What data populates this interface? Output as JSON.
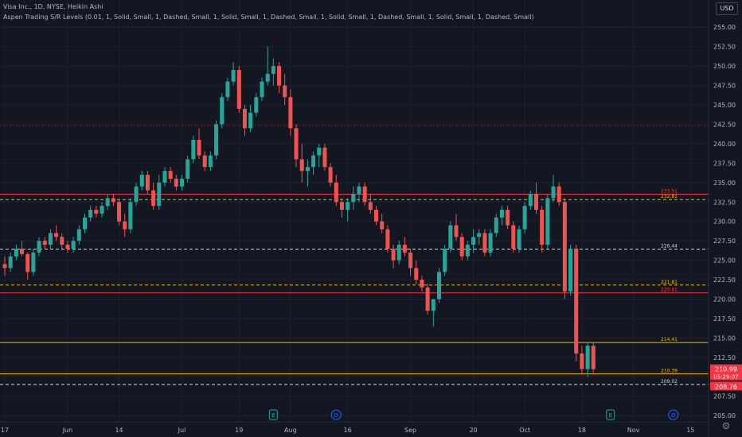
{
  "header": {
    "title": "Visa Inc., 1D, NYSE, Heikin Ashi",
    "indicator": "Aspen Trading S/R Levels (0.01, 1, Solid, Small, 1, Dashed, Small, 1, Solid, Small, 1, Dashed, Small, 1, Solid, Small, 1, Dashed, Small, 1, Solid, Small, 1, Dashed, Small)"
  },
  "currency": "USD",
  "settings_icon": "gear-icon",
  "colors": {
    "bg": "#131722",
    "up": "#26a69a",
    "down": "#ef5350",
    "axis_text": "#b2b5be",
    "grid": "#1e222d",
    "red_level": "#f23645",
    "yellow_level": "#f0b90b",
    "white_level": "#d1d4dc",
    "green_level": "#26a69a"
  },
  "chart_data": {
    "type": "candlestick",
    "symbol": "Visa Inc.",
    "timeframe": "1D",
    "exchange": "NYSE",
    "style": "Heikin Ashi",
    "ylim": [
      204.2,
      258.5
    ],
    "y_ticks": [
      "205.00",
      "207.50",
      "210.00",
      "212.50",
      "215.00",
      "217.50",
      "220.00",
      "222.50",
      "225.00",
      "227.50",
      "230.00",
      "232.50",
      "235.00",
      "237.50",
      "240.00",
      "242.50",
      "245.00",
      "247.50",
      "250.00",
      "252.50",
      "255.00"
    ],
    "x_ticks": [
      {
        "label": "17",
        "i": 0
      },
      {
        "label": "Jun",
        "i": 11
      },
      {
        "label": "14",
        "i": 20
      },
      {
        "label": "Jul",
        "i": 31
      },
      {
        "label": "19",
        "i": 41
      },
      {
        "label": "Aug",
        "i": 50
      },
      {
        "label": "16",
        "i": 60
      },
      {
        "label": "Sep",
        "i": 71
      },
      {
        "label": "20",
        "i": 82
      },
      {
        "label": "Oct",
        "i": 91
      },
      {
        "label": "18",
        "i": 101
      },
      {
        "label": "Nov",
        "i": 110
      },
      {
        "label": "15",
        "i": 120
      }
    ],
    "total_slots": 124,
    "levels": [
      {
        "value": 242.3,
        "color": "red",
        "dash": false,
        "faint": true,
        "label": ""
      },
      {
        "value": 233.51,
        "color": "red",
        "dash": false,
        "label": "233.51"
      },
      {
        "value": 232.81,
        "color": "yellow",
        "dash": true,
        "label": "232.81"
      },
      {
        "value": 226.44,
        "color": "white",
        "dash": true,
        "label": "226.44"
      },
      {
        "value": 221.81,
        "color": "yellow",
        "dash": true,
        "label": "221.81"
      },
      {
        "value": 220.81,
        "color": "red",
        "dash": false,
        "label": "220.81"
      },
      {
        "value": 214.41,
        "color": "yellow",
        "dash": false,
        "label": "214.41"
      },
      {
        "value": 210.39,
        "color": "yellow",
        "dash": false,
        "label": "210.39"
      },
      {
        "value": 209.02,
        "color": "white",
        "dash": true,
        "label": "209.02"
      }
    ],
    "price_labels": [
      {
        "value": 210.99,
        "text": "210.99",
        "sub": "05:29:07",
        "color": "#f23645"
      },
      {
        "value": 208.76,
        "text": "208.76",
        "sub": "",
        "color": "#f23645"
      }
    ],
    "events": [
      {
        "type": "E",
        "i": 47
      },
      {
        "type": "D",
        "i": 58
      },
      {
        "type": "E",
        "i": 106
      },
      {
        "type": "D",
        "i": 117
      }
    ],
    "candles": [
      [
        224.5,
        225.5,
        223,
        224
      ],
      [
        224,
        226,
        223.5,
        225.5
      ],
      [
        225.5,
        227,
        225,
        226.5
      ],
      [
        226.5,
        227.5,
        225.5,
        225.8
      ],
      [
        225.8,
        226,
        222.5,
        223.5
      ],
      [
        223.5,
        226.5,
        223,
        226
      ],
      [
        226,
        228,
        225.5,
        227.5
      ],
      [
        227.5,
        228,
        226.5,
        227
      ],
      [
        227,
        229,
        226.5,
        228.5
      ],
      [
        228.5,
        229.5,
        227.5,
        228
      ],
      [
        228,
        228.5,
        226.5,
        227
      ],
      [
        227,
        227.5,
        226,
        226.5
      ],
      [
        226.5,
        228,
        226,
        227.5
      ],
      [
        227.5,
        229.5,
        227,
        229
      ],
      [
        229,
        231,
        228.5,
        230.5
      ],
      [
        230.5,
        232,
        230,
        231.5
      ],
      [
        231.5,
        232,
        230.5,
        231
      ],
      [
        231,
        232.5,
        230.5,
        232
      ],
      [
        232,
        233.5,
        231.5,
        233
      ],
      [
        233,
        233.5,
        232,
        232.5
      ],
      [
        232.5,
        233,
        229.5,
        230
      ],
      [
        230,
        231,
        228,
        229
      ],
      [
        229,
        233,
        228.5,
        232.5
      ],
      [
        232.5,
        235,
        232,
        234.5
      ],
      [
        234.5,
        236.5,
        234,
        236
      ],
      [
        236,
        236.5,
        233.5,
        234
      ],
      [
        234,
        235,
        231.5,
        232
      ],
      [
        232,
        236,
        231.5,
        235
      ],
      [
        235,
        237,
        234.5,
        236.5
      ],
      [
        236.5,
        237,
        235,
        235.5
      ],
      [
        235.5,
        236,
        234,
        234.5
      ],
      [
        234.5,
        236,
        234,
        235.5
      ],
      [
        235.5,
        238.5,
        235,
        238
      ],
      [
        238,
        241,
        237.5,
        240.5
      ],
      [
        240.5,
        242,
        238,
        238.5
      ],
      [
        238.5,
        239,
        236.5,
        237
      ],
      [
        237,
        239,
        236.5,
        238.5
      ],
      [
        238.5,
        243,
        238,
        242.5
      ],
      [
        242.5,
        246.5,
        242,
        246
      ],
      [
        246,
        248.5,
        245.5,
        248
      ],
      [
        248,
        250.5,
        247.5,
        249.5
      ],
      [
        249.5,
        250,
        244,
        244.5
      ],
      [
        244.5,
        245,
        241,
        242
      ],
      [
        242,
        245,
        241.5,
        244
      ],
      [
        244,
        246.5,
        243.5,
        246
      ],
      [
        246,
        248.5,
        245.5,
        248
      ],
      [
        248,
        252.5,
        247.5,
        249
      ],
      [
        249,
        251,
        247.5,
        250
      ],
      [
        250,
        250.5,
        246.5,
        247.5
      ],
      [
        247.5,
        249,
        245,
        246
      ],
      [
        246,
        247,
        241,
        242
      ],
      [
        242,
        242.5,
        237,
        238
      ],
      [
        238,
        240,
        235,
        236.5
      ],
      [
        236.5,
        238,
        234.5,
        237
      ],
      [
        237,
        239,
        236,
        238.5
      ],
      [
        238.5,
        240,
        237,
        239.5
      ],
      [
        239.5,
        240,
        236.5,
        237
      ],
      [
        237,
        237.5,
        234.5,
        235
      ],
      [
        235,
        236,
        232,
        232.5
      ],
      [
        232.5,
        233,
        230.5,
        231.5
      ],
      [
        231.5,
        233,
        230,
        232.5
      ],
      [
        232.5,
        234.5,
        231.5,
        233.5
      ],
      [
        233.5,
        235,
        232.5,
        234.5
      ],
      [
        234.5,
        235,
        232,
        232.5
      ],
      [
        232.5,
        233.5,
        231,
        231.5
      ],
      [
        231.5,
        232,
        229.5,
        230
      ],
      [
        230,
        231,
        228.5,
        229
      ],
      [
        229,
        229.5,
        226,
        226.5
      ],
      [
        226.5,
        227,
        224,
        225
      ],
      [
        225,
        227.5,
        224.5,
        227
      ],
      [
        227,
        228,
        225.5,
        226
      ],
      [
        226,
        226.5,
        223,
        224
      ],
      [
        224,
        225,
        222,
        222.5
      ],
      [
        222.5,
        223,
        221,
        221.5
      ],
      [
        221.5,
        222,
        218,
        218.5
      ],
      [
        218.5,
        220,
        216.5,
        220
      ],
      [
        220,
        224,
        219.5,
        223.5
      ],
      [
        223.5,
        227,
        223,
        226.5
      ],
      [
        226.5,
        230,
        226,
        229.5
      ],
      [
        229.5,
        231,
        227.5,
        228
      ],
      [
        228,
        228.5,
        225,
        225.5
      ],
      [
        225.5,
        227.5,
        225,
        227
      ],
      [
        227,
        229,
        226,
        228
      ],
      [
        228,
        229,
        227,
        228.5
      ],
      [
        228.5,
        229,
        225.5,
        226
      ],
      [
        226,
        229,
        225.5,
        228.5
      ],
      [
        228.5,
        231,
        228,
        230.5
      ],
      [
        230.5,
        232,
        229.5,
        231.5
      ],
      [
        231.5,
        232,
        229,
        229.5
      ],
      [
        229.5,
        230,
        226,
        226.5
      ],
      [
        226.5,
        229.5,
        226,
        229
      ],
      [
        229,
        232.5,
        228.5,
        232
      ],
      [
        232,
        234,
        231.5,
        233.5
      ],
      [
        233.5,
        235,
        231,
        231.5
      ],
      [
        231.5,
        232,
        226,
        227
      ],
      [
        227,
        233.5,
        226.5,
        233
      ],
      [
        233,
        236,
        232.5,
        234.5
      ],
      [
        234.5,
        235,
        232,
        232.5
      ],
      [
        232.5,
        233,
        220,
        221
      ],
      [
        221,
        227,
        220.5,
        226.5
      ],
      [
        226.5,
        227,
        212,
        213
      ],
      [
        213,
        214,
        210.5,
        211
      ],
      [
        211,
        214.5,
        210,
        214
      ],
      [
        214,
        214.5,
        210.5,
        210.99
      ]
    ]
  }
}
